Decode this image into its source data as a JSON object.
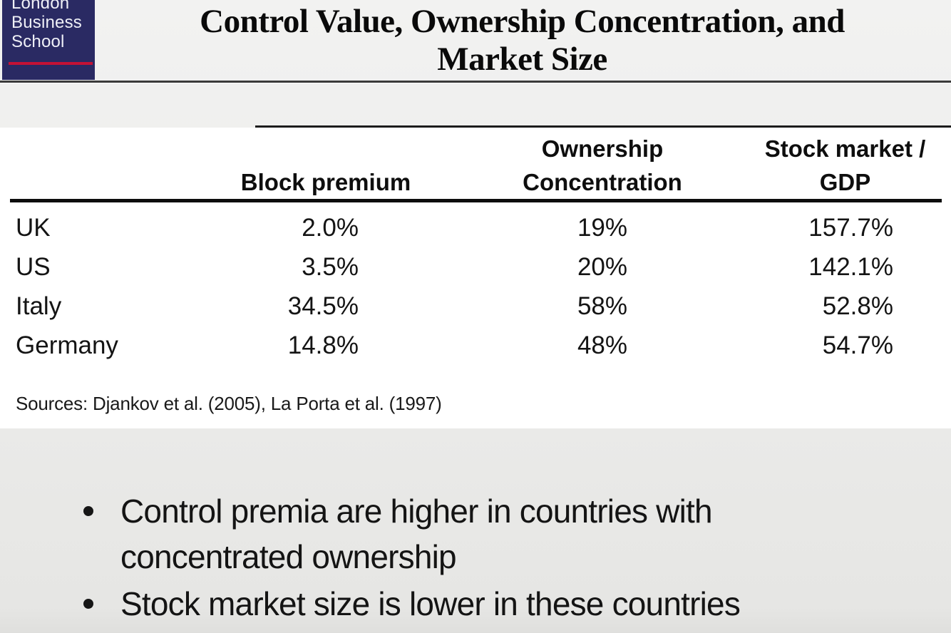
{
  "logo": {
    "line1": "London",
    "line2": "Business",
    "line3": "School"
  },
  "slide": {
    "title_line1": "Control Value, Ownership Concentration, and",
    "title_line2": "Market Size"
  },
  "table": {
    "headers": {
      "country": "",
      "block_premium": "Block premium",
      "ownership_line1": "Ownership",
      "ownership_line2": "Concentration",
      "stock_line1": "Stock market /",
      "stock_line2": "GDP"
    },
    "rows": [
      {
        "country": "UK",
        "block_premium": "2.0%",
        "ownership_concentration": "19%",
        "stock_market_gdp": "157.7%"
      },
      {
        "country": "US",
        "block_premium": "3.5%",
        "ownership_concentration": "20%",
        "stock_market_gdp": "142.1%"
      },
      {
        "country": "Italy",
        "block_premium": "34.5%",
        "ownership_concentration": "58%",
        "stock_market_gdp": "52.8%"
      },
      {
        "country": "Germany",
        "block_premium": "14.8%",
        "ownership_concentration": "48%",
        "stock_market_gdp": "54.7%"
      }
    ]
  },
  "sources": "Sources: Djankov et al. (2005), La Porta et al. (1997)",
  "bullets": [
    "Control premia are higher in countries with concentrated ownership",
    "Stock market size is lower in these countries"
  ],
  "colors": {
    "logo_navy": "#2a2a63",
    "logo_red": "#c41235",
    "slide_gray": "#ececea",
    "panel_white": "#ffffff",
    "text_black": "#141414"
  }
}
